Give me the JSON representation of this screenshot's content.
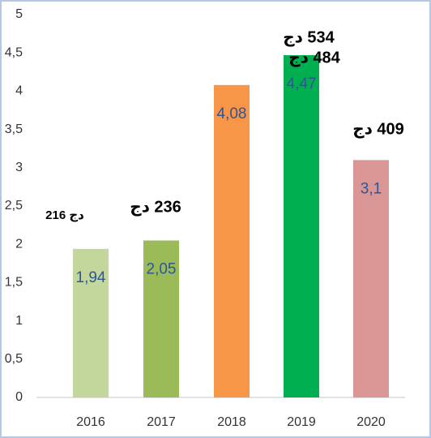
{
  "chart_data": {
    "type": "bar",
    "categories": [
      "2016",
      "2017",
      "2018",
      "2019",
      "2020"
    ],
    "values": [
      1.94,
      2.05,
      4.08,
      4.47,
      3.1
    ],
    "value_labels": [
      "1,94",
      "2,05",
      "4,08",
      "4,47",
      "3,1"
    ],
    "colors": [
      "#c3d69b",
      "#9bbb59",
      "#f79646",
      "#00b050",
      "#d99694"
    ],
    "ylim": [
      0,
      5
    ],
    "yticks": [
      0,
      {
        "value": 0.5,
        "label": "0,5"
      },
      1,
      {
        "value": 1.5,
        "label": "1,5"
      },
      2,
      {
        "value": 2.5,
        "label": "2,5"
      },
      3,
      {
        "value": 3.5,
        "label": "3,5"
      },
      4,
      {
        "value": 4.5,
        "label": "4,5"
      },
      5
    ],
    "grid": false,
    "annotations": [
      "دج 216",
      "236 دج",
      "484 دج",
      "534 دج",
      "409 دج"
    ]
  }
}
